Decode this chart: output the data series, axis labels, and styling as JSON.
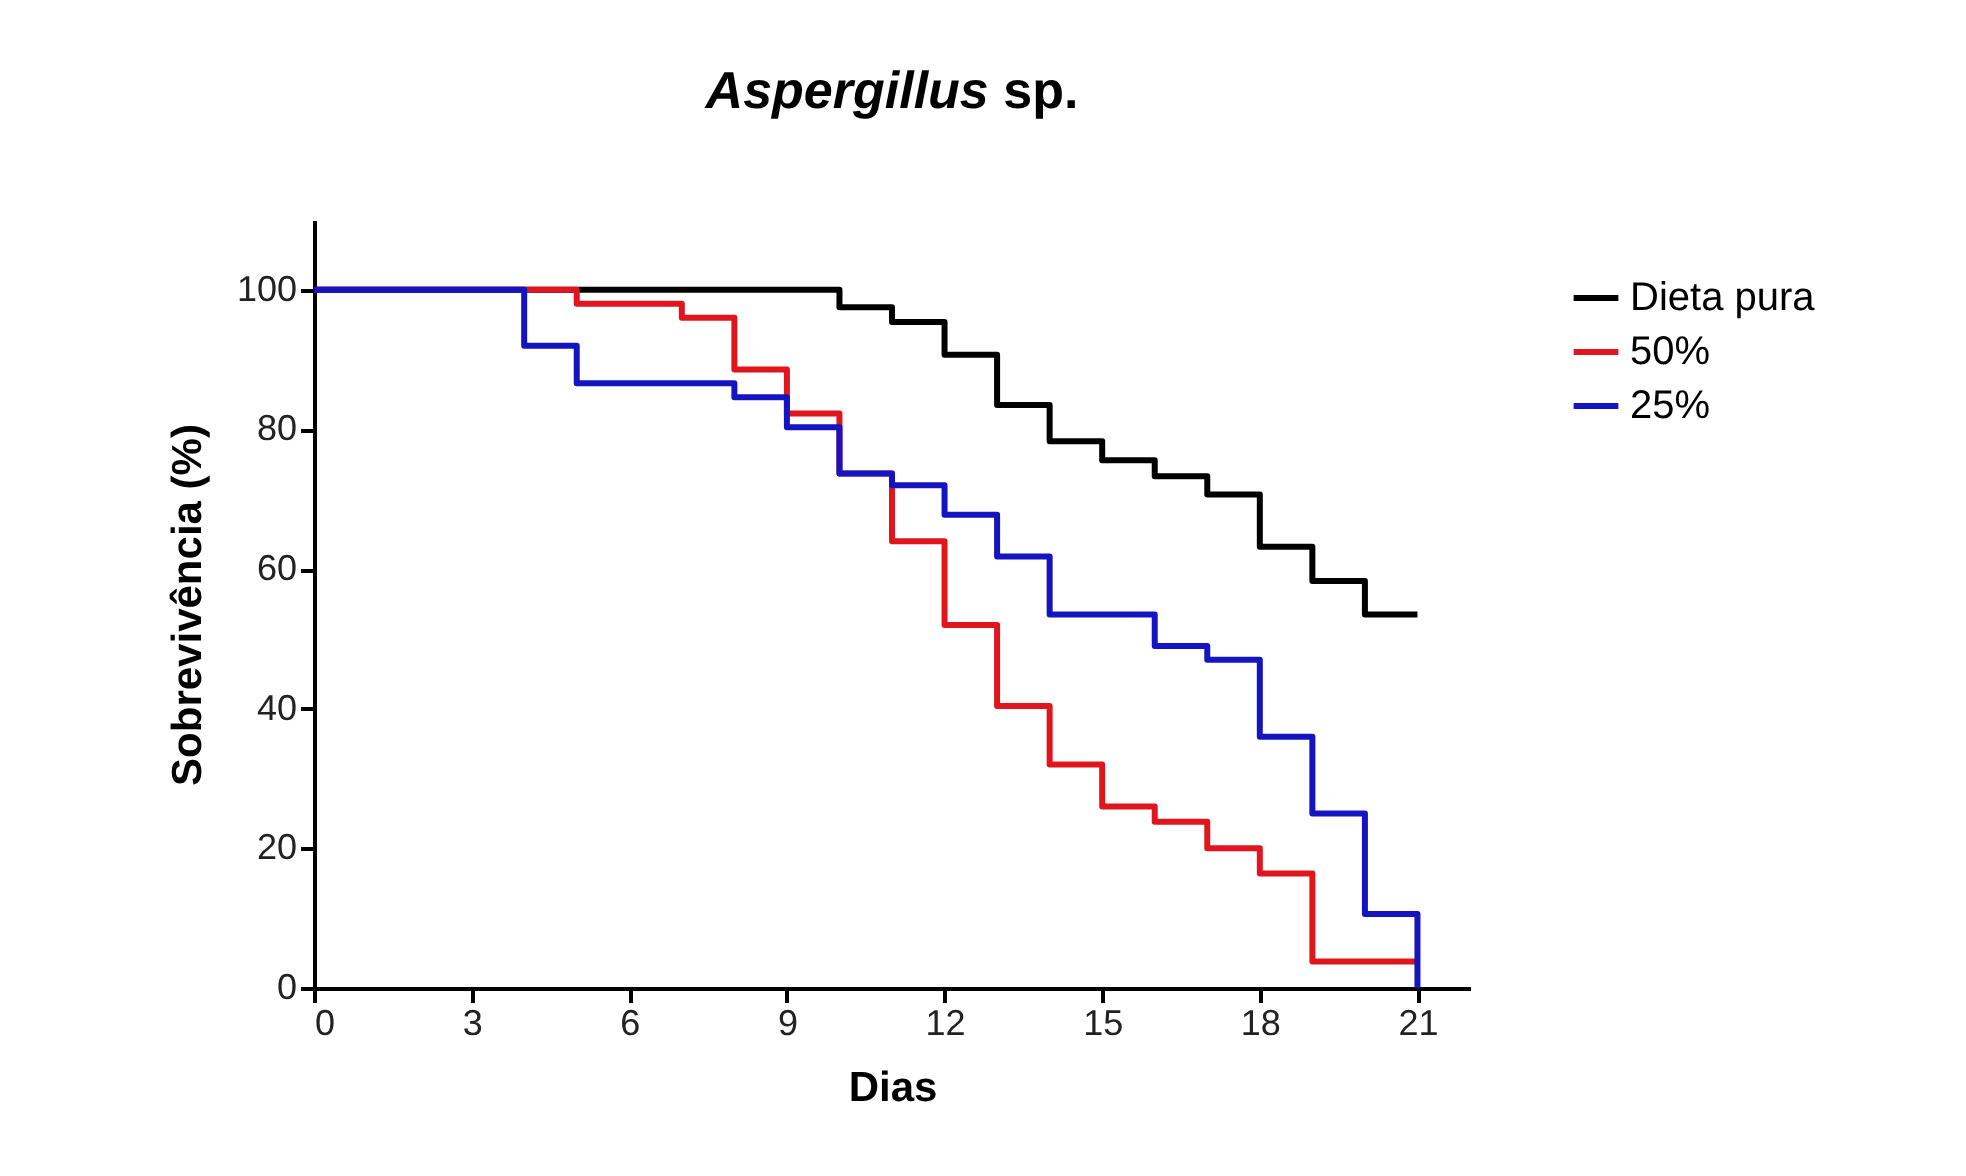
{
  "chart_data": {
    "type": "step",
    "title": "Aspergillus sp.",
    "xlabel": "Dias",
    "ylabel": "Sobrevivência (%)",
    "xlim": [
      0,
      22
    ],
    "ylim": [
      0,
      110
    ],
    "xticks": [
      0,
      3,
      6,
      9,
      12,
      15,
      18,
      21
    ],
    "yticks": [
      0,
      20,
      40,
      60,
      80,
      100
    ],
    "grid": false,
    "legend": "top right",
    "marker": "none",
    "line_style": "solid",
    "series": [
      {
        "name": "Dieta pura",
        "color": "#000000",
        "x": [
          0,
          10,
          11,
          12,
          13,
          14,
          15,
          16,
          17,
          18,
          19,
          20,
          21
        ],
        "values": [
          100,
          97.5,
          95.4,
          90.7,
          83.5,
          78.3,
          75.6,
          73.3,
          70.7,
          63.2,
          58.3,
          53.5,
          53.5
        ]
      },
      {
        "name": "50%",
        "color": "#e0161f",
        "x": [
          0,
          5,
          7,
          8,
          9,
          10,
          11,
          12,
          13,
          14,
          15,
          16,
          17,
          18,
          19,
          21
        ],
        "values": [
          100,
          98,
          96,
          88.6,
          82.3,
          73.7,
          64,
          52,
          40.4,
          32,
          26,
          23.8,
          20,
          16.4,
          3.8,
          3.8
        ]
      },
      {
        "name": "25%",
        "color": "#1414c0",
        "x": [
          0,
          4,
          5,
          8,
          9,
          10,
          11,
          12,
          13,
          14,
          16,
          17,
          18,
          19,
          20,
          21
        ],
        "values": [
          100,
          92,
          86.6,
          84.6,
          80.3,
          73.7,
          72,
          67.8,
          61.8,
          53.5,
          49,
          47,
          36,
          25,
          10.6,
          0
        ]
      }
    ]
  }
}
